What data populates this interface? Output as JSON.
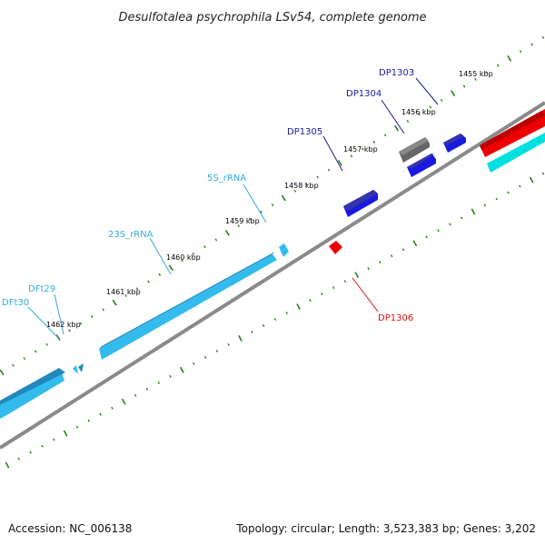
{
  "title": "Desulfotalea psychrophila LSv54, complete genome",
  "accession": "Accession: NC_006138",
  "summary": "Topology: circular; Length: 3,523,383 bp; Genes: 3,202",
  "colors": {
    "backbone": "#8a8a8a",
    "ticks": "#2e7d1e",
    "gene_blue": "#1a1adf",
    "rna_cyan": "#33bbee",
    "grey": "#666666",
    "red": "#ee0000",
    "cyan": "#00e0e0"
  },
  "scale_labels": [
    {
      "text": "1455 kbp",
      "kbp": 1455
    },
    {
      "text": "1456 kbp",
      "kbp": 1456
    },
    {
      "text": "1457 kbp",
      "kbp": 1457
    },
    {
      "text": "1458 kbp",
      "kbp": 1458
    },
    {
      "text": "1459 kbp",
      "kbp": 1459
    },
    {
      "text": "1460 kbp",
      "kbp": 1460
    },
    {
      "text": "1461 kbp",
      "kbp": 1461
    },
    {
      "text": "1462 kbp",
      "kbp": 1462
    }
  ],
  "feature_labels": [
    {
      "text": "DP1303",
      "color": "#1a1a9f"
    },
    {
      "text": "DP1304",
      "color": "#1a1a9f"
    },
    {
      "text": "DP1305",
      "color": "#1a1a9f"
    },
    {
      "text": "5S_rRNA",
      "color": "#33aadd"
    },
    {
      "text": "23S_rRNA",
      "color": "#33aadd"
    },
    {
      "text": "DFt29",
      "color": "#33aadd"
    },
    {
      "text": "DFt30",
      "color": "#33aadd"
    },
    {
      "text": "DP1306",
      "color": "#dd1111"
    }
  ]
}
